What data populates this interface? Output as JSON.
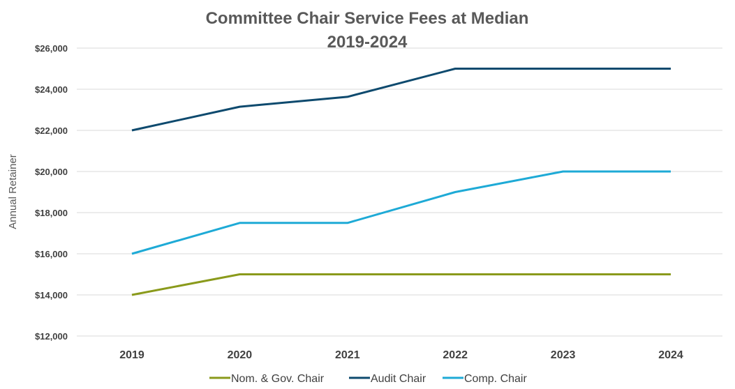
{
  "chart_data": {
    "type": "line",
    "title": "Committee Chair Service Fees at Median",
    "subtitle": "2019-2024",
    "xlabel": "",
    "ylabel": "Annual Retainer",
    "x": [
      "2019",
      "2020",
      "2021",
      "2022",
      "2023",
      "2024"
    ],
    "ylim": [
      12000,
      26000
    ],
    "yticks": [
      "$12,000",
      "$14,000",
      "$16,000",
      "$18,000",
      "$20,000",
      "$22,000",
      "$24,000",
      "$26,000"
    ],
    "ytick_values": [
      12000,
      14000,
      16000,
      18000,
      20000,
      22000,
      24000,
      26000
    ],
    "grid": true,
    "legend_position": "bottom",
    "series": [
      {
        "name": "Nom. & Gov. Chair",
        "color": "#8a9a1b",
        "values": [
          14000,
          15000,
          15000,
          15000,
          15000,
          15000
        ]
      },
      {
        "name": "Audit Chair",
        "color": "#0e4a6e",
        "values": [
          22000,
          23150,
          23630,
          25000,
          25000,
          25000
        ]
      },
      {
        "name": "Comp. Chair",
        "color": "#1eaad6",
        "values": [
          16000,
          17500,
          17500,
          19000,
          20000,
          20000
        ]
      }
    ]
  }
}
